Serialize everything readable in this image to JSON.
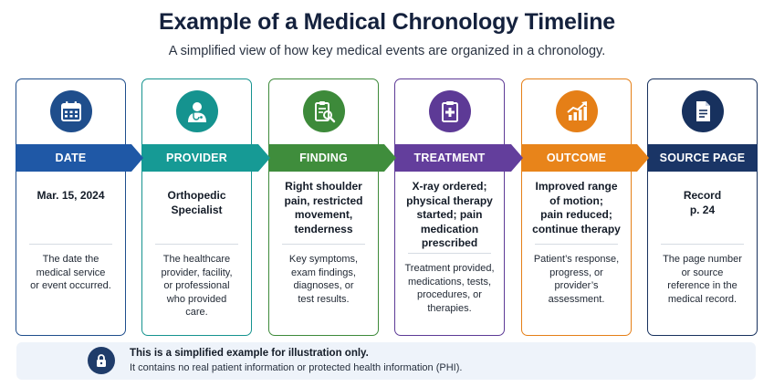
{
  "title": "Example of a Medical Chronology Timeline",
  "subtitle": "A simplified view of how key medical events are organized in a chronology.",
  "steps": [
    {
      "label": "DATE",
      "icon": "calendar-icon",
      "color": "#1f4e8c",
      "band_color": "#1f58a6",
      "main_lines": [
        "Mar. 15, 2024"
      ],
      "desc_lines": [
        "The date the",
        "medical service",
        "or event occurred."
      ]
    },
    {
      "label": "PROVIDER",
      "icon": "doctor-icon",
      "color": "#15938f",
      "band_color": "#169a95",
      "main_lines": [
        "Orthopedic",
        "Specialist"
      ],
      "desc_lines": [
        "The healthcare",
        "provider, facility,",
        "or professional",
        "who provided",
        "care."
      ]
    },
    {
      "label": "FINDING",
      "icon": "clipboard-search-icon",
      "color": "#3d8a3a",
      "band_color": "#3f8d3c",
      "main_lines": [
        "Right shoulder",
        "pain, restricted",
        "movement,",
        "tenderness"
      ],
      "desc_lines": [
        "Key symptoms,",
        "exam findings,",
        "diagnoses, or",
        "test results."
      ]
    },
    {
      "label": "TREATMENT",
      "icon": "medical-chart-icon",
      "color": "#5d3a96",
      "band_color": "#633e9c",
      "main_lines": [
        "X-ray ordered;",
        "physical therapy",
        "started; pain",
        "medication",
        "prescribed"
      ],
      "desc_lines": [
        "Treatment provided,",
        "medications, tests,",
        "procedures, or",
        "therapies."
      ]
    },
    {
      "label": "OUTCOME",
      "icon": "trend-chart-icon",
      "color": "#e57f17",
      "band_color": "#e8841a",
      "main_lines": [
        "Improved range",
        "of motion;",
        "pain reduced;",
        "continue therapy"
      ],
      "desc_lines": [
        "Patient’s response,",
        "progress, or",
        "provider’s",
        "assessment."
      ]
    },
    {
      "label": "SOURCE PAGE",
      "icon": "document-icon",
      "color": "#17315e",
      "band_color": "#1a3566",
      "main_lines": [
        "Record",
        "p. 24"
      ],
      "desc_lines": [
        "The page number",
        "or source",
        "reference in the",
        "medical record."
      ]
    }
  ],
  "notice": {
    "icon": "lock-icon",
    "title": "This is a simplified example for illustration only.",
    "body": "It contains no real patient information or protected health information (PHI)."
  }
}
